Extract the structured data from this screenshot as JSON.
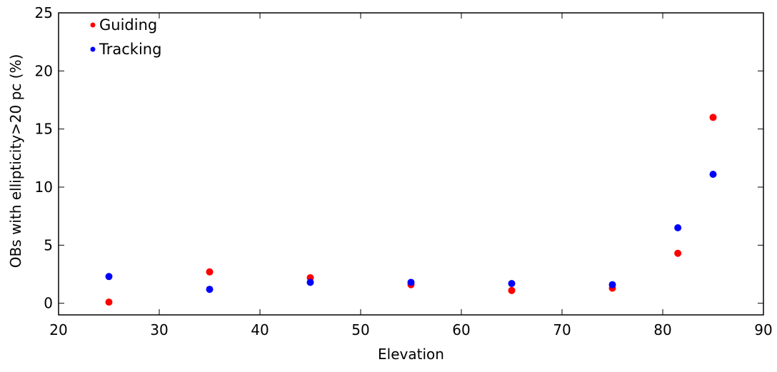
{
  "chart_data": {
    "type": "scatter",
    "xlabel": "Elevation",
    "ylabel": "OBs with ellipticity>20 pc (%)",
    "xlim": [
      20,
      90
    ],
    "ylim": [
      -1,
      25
    ],
    "xticks": [
      20,
      30,
      40,
      50,
      60,
      70,
      80,
      90
    ],
    "yticks": [
      0,
      5,
      10,
      15,
      20,
      25
    ],
    "grid": false,
    "legend_position": "top-left",
    "series": [
      {
        "name": "Guiding",
        "color": "#ff0000",
        "x": [
          25,
          35,
          45,
          55,
          65,
          75,
          81.5,
          85
        ],
        "y": [
          0.1,
          2.7,
          2.2,
          1.6,
          1.1,
          1.3,
          4.3,
          16.0
        ]
      },
      {
        "name": "Tracking",
        "color": "#0000ff",
        "x": [
          25,
          35,
          45,
          55,
          65,
          75,
          81.5,
          85
        ],
        "y": [
          2.3,
          1.2,
          1.8,
          1.8,
          1.7,
          1.6,
          6.5,
          11.1
        ]
      }
    ]
  }
}
